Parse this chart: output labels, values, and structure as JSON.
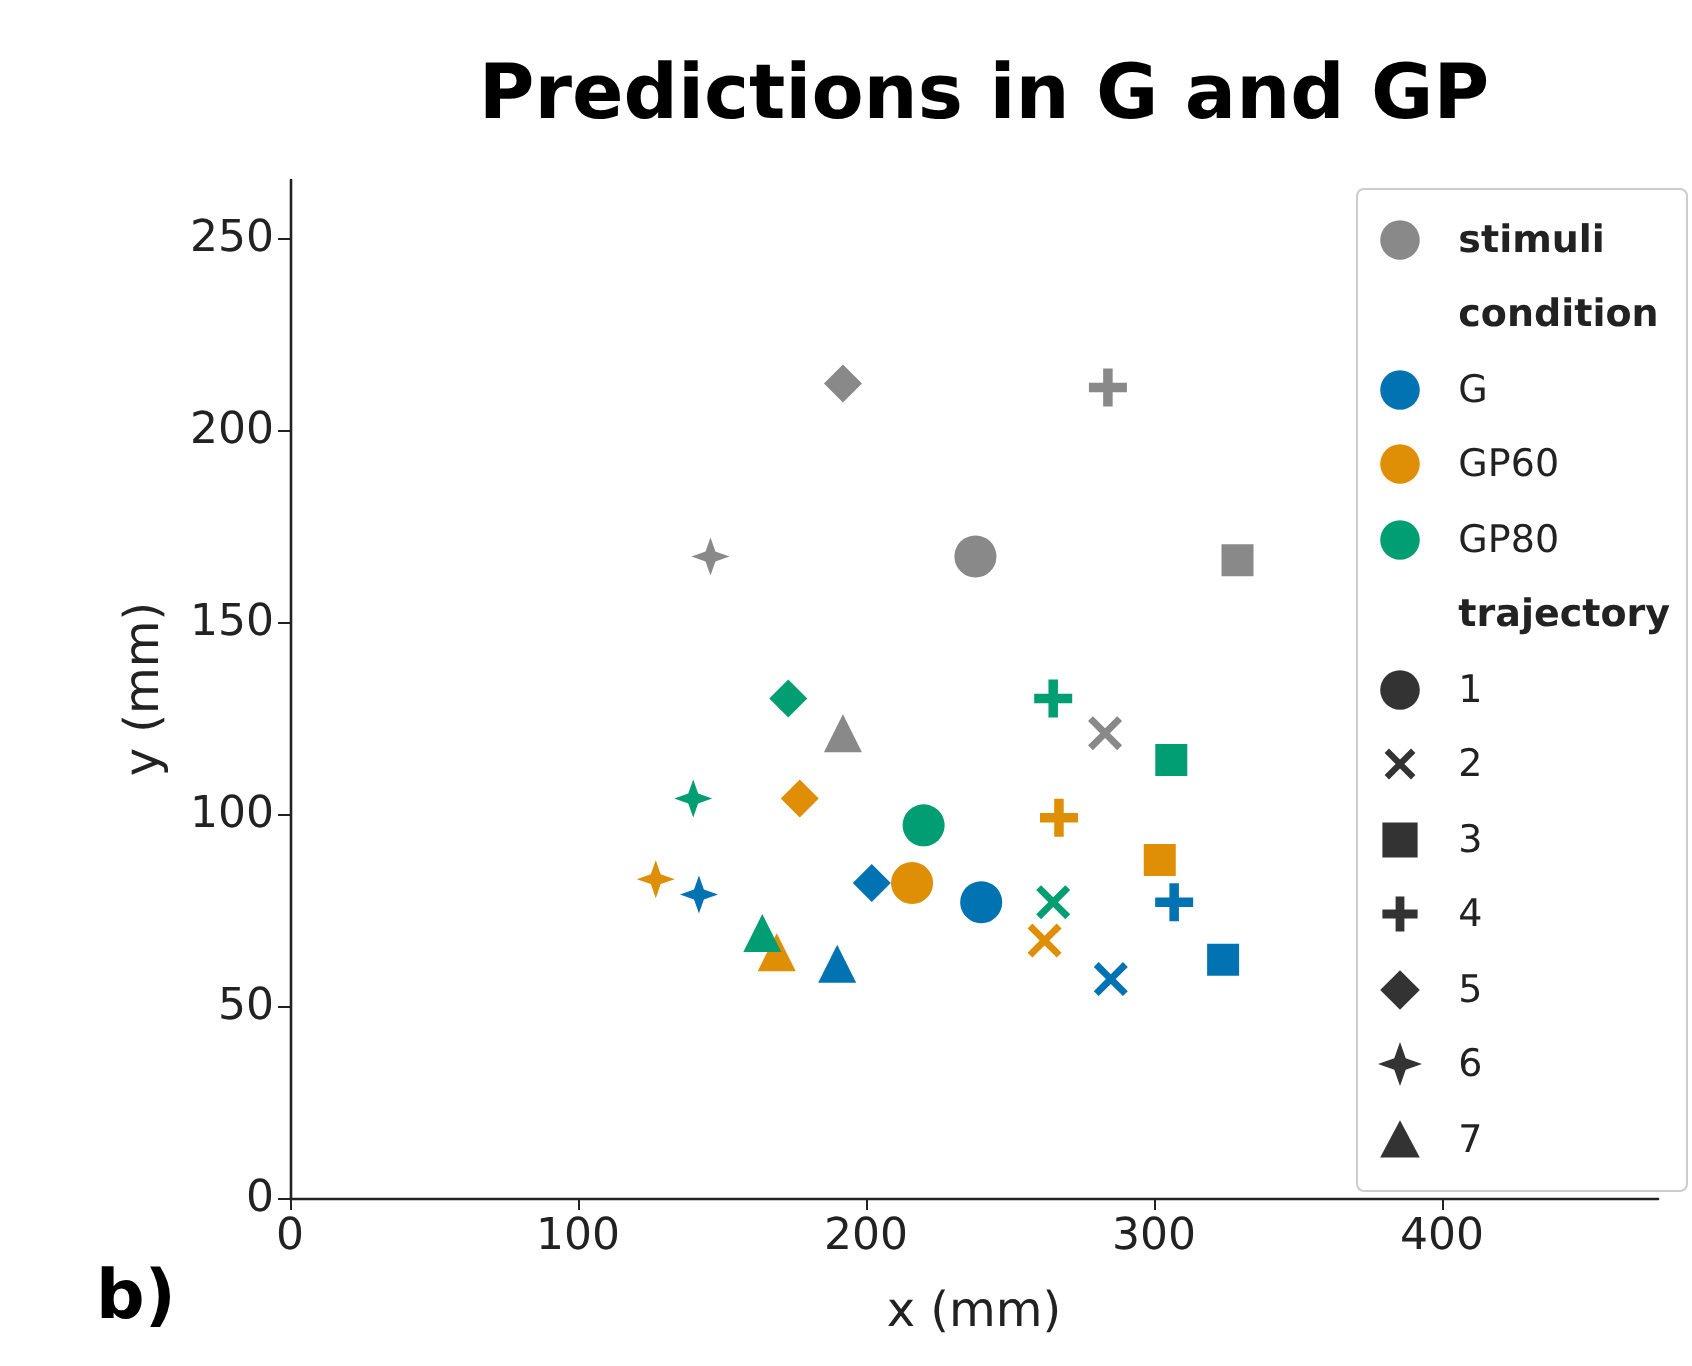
{
  "chart_data": {
    "type": "scatter",
    "title": "Predictions in G and GP",
    "xlabel": "x (mm)",
    "ylabel": "y (mm)",
    "annotations": [
      "b)"
    ],
    "legend_title": [
      "condition",
      "trajectory"
    ],
    "series": [
      {
        "name": "stimuli",
        "color": "#898989",
        "marker": [
          "circle",
          "cross",
          "square",
          "plus",
          "diamond",
          "star",
          "triangle"
        ],
        "x": [
          238,
          283,
          329,
          284,
          192,
          146,
          192
        ],
        "values": [
          167,
          121,
          166,
          211,
          212,
          167,
          121
        ]
      },
      {
        "name": "G",
        "color": "#0173b2",
        "marker": [
          "circle",
          "cross",
          "square",
          "plus",
          "diamond",
          "star",
          "triangle"
        ],
        "x": [
          240,
          285,
          324,
          307,
          202,
          142,
          190
        ],
        "values": [
          77,
          57,
          62,
          77,
          82,
          79,
          61
        ]
      },
      {
        "name": "GP60",
        "color": "#de8f05",
        "marker": [
          "circle",
          "cross",
          "square",
          "plus",
          "diamond",
          "star",
          "triangle"
        ],
        "x": [
          216,
          262,
          302,
          267,
          177,
          127,
          169
        ],
        "values": [
          82,
          67,
          88,
          99,
          104,
          83,
          64
        ]
      },
      {
        "name": "GP80",
        "color": "#029e73",
        "marker": [
          "circle",
          "cross",
          "square",
          "plus",
          "diamond",
          "star",
          "triangle"
        ],
        "x": [
          220,
          265,
          306,
          265,
          173,
          140,
          164
        ],
        "values": [
          97,
          77,
          114,
          130,
          130,
          104,
          69
        ]
      },
      {
        "name": "1",
        "color": "#333333",
        "marker": "circle"
      },
      {
        "name": "2",
        "color": "#333333",
        "marker": "cross"
      },
      {
        "name": "3",
        "color": "#333333",
        "marker": "square"
      },
      {
        "name": "4",
        "color": "#333333",
        "marker": "plus"
      },
      {
        "name": "5",
        "color": "#333333",
        "marker": "diamond"
      },
      {
        "name": "6",
        "color": "#333333",
        "marker": "star"
      },
      {
        "name": "7",
        "color": "#333333",
        "marker": "triangle"
      }
    ],
    "xlim": [
      0,
      475
    ],
    "xticks": [
      0,
      100,
      200,
      300,
      400
    ],
    "ylim": [
      0,
      265
    ],
    "yticks": [
      0,
      50,
      100,
      150,
      200,
      250
    ],
    "grid": false,
    "legend": "top right"
  }
}
